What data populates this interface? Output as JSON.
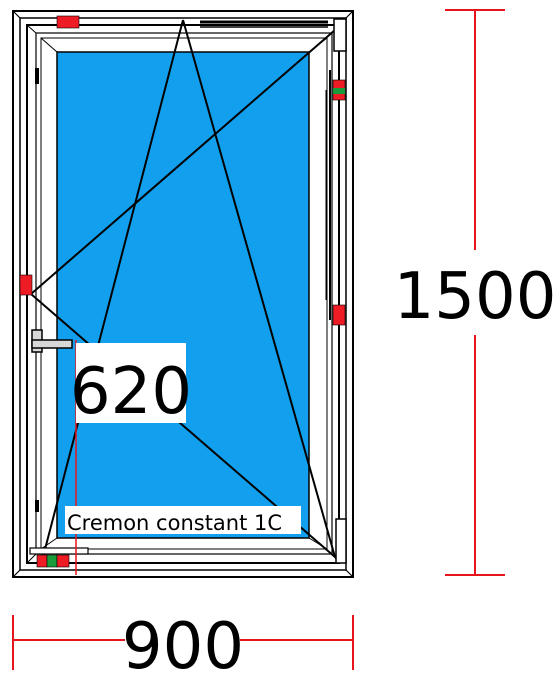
{
  "dimensions": {
    "width_mm": "900",
    "height_mm": "1500",
    "handle_height_mm": "620"
  },
  "hardware_label": "Cremon constant 1C",
  "colors": {
    "glass": "#12a0ee",
    "frame_stroke": "#000000",
    "frame_fill": "#ffffff",
    "dimension_line": "#e8141b",
    "hardware_red": "#ee1c24",
    "hardware_green": "#1a9c3a",
    "hardware_gray": "#d8d8d8"
  },
  "icons": {
    "handle": "window-handle-icon",
    "hinge": "hinge-icon",
    "lock_point": "locking-point-icon"
  }
}
